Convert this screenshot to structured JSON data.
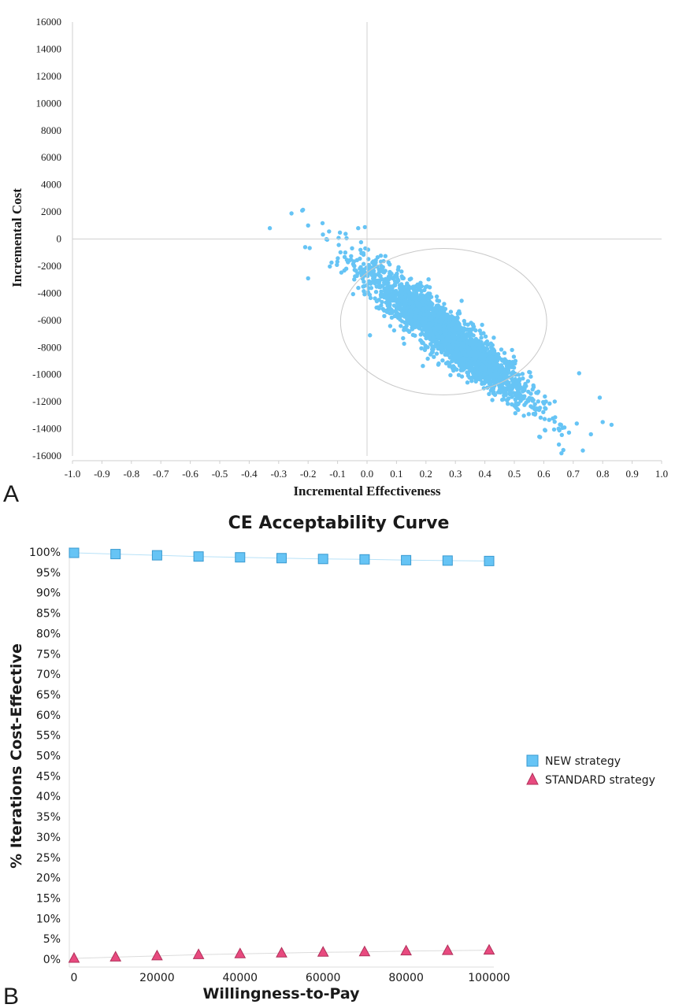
{
  "chart_data": [
    {
      "type": "scatter",
      "panel_label": "A",
      "xlabel": "Incremental Effectiveness",
      "ylabel": "Incremental Cost",
      "xlim": [
        -1.0,
        1.0
      ],
      "ylim": [
        -16000,
        16000
      ],
      "x_ticks": [
        "-1.0",
        "-0.9",
        "-0.8",
        "-0.7",
        "-0.6",
        "-0.5",
        "-0.4",
        "-0.3",
        "-0.2",
        "-0.1",
        "0.0",
        "0.1",
        "0.2",
        "0.3",
        "0.4",
        "0.5",
        "0.6",
        "0.7",
        "0.8",
        "0.9",
        "1.0"
      ],
      "y_ticks": [
        "16000",
        "14000",
        "12000",
        "10000",
        "8000",
        "6000",
        "4000",
        "2000",
        "0",
        "-2000",
        "-4000",
        "-6000",
        "-8000",
        "-10000",
        "-12000",
        "-14000",
        "-16000"
      ],
      "grid": false,
      "point_color": "#66c4f5",
      "cloud": {
        "center": [
          0.27,
          -7000
        ],
        "sd_x": 0.14,
        "sd_y": 2500,
        "correlation": -0.93,
        "n_points": 2500
      },
      "confidence_ellipse": {
        "center": [
          0.26,
          -6100
        ],
        "semi_axis_x": 0.35,
        "semi_axis_y": 5400,
        "color": "#c8c8c8"
      },
      "outliers": [
        {
          "x": -0.33,
          "y": 800
        },
        {
          "x": -0.22,
          "y": 2100
        },
        {
          "x": -0.2,
          "y": 1000
        },
        {
          "x": -0.21,
          "y": -600
        },
        {
          "x": -0.2,
          "y": -2900
        },
        {
          "x": -0.03,
          "y": 800
        },
        {
          "x": 0.01,
          "y": -7100
        },
        {
          "x": 0.66,
          "y": -15800
        },
        {
          "x": 0.76,
          "y": -14400
        },
        {
          "x": 0.8,
          "y": -13500
        },
        {
          "x": 0.83,
          "y": -13700
        },
        {
          "x": 0.79,
          "y": -11700
        },
        {
          "x": 0.72,
          "y": -9900
        }
      ]
    },
    {
      "type": "line",
      "panel_label": "B",
      "title": "CE Acceptability Curve",
      "xlabel": "Willingness-to-Pay",
      "ylabel": "% Iterations Cost-Effective",
      "xlim": [
        0,
        100000
      ],
      "ylim": [
        0,
        100
      ],
      "x_ticks": [
        "0",
        "20000",
        "40000",
        "60000",
        "80000",
        "100000"
      ],
      "y_ticks": [
        "100%",
        "95%",
        "90%",
        "85%",
        "80%",
        "75%",
        "70%",
        "65%",
        "60%",
        "55%",
        "50%",
        "45%",
        "40%",
        "35%",
        "30%",
        "25%",
        "20%",
        "15%",
        "10%",
        "5%",
        "0%"
      ],
      "x": [
        0,
        10000,
        20000,
        30000,
        40000,
        50000,
        60000,
        70000,
        80000,
        90000,
        100000
      ],
      "series": [
        {
          "name": "NEW strategy",
          "marker": "square",
          "color": "#66c4f5",
          "values": [
            99.8,
            99.5,
            99.2,
            98.9,
            98.7,
            98.5,
            98.3,
            98.2,
            98.0,
            97.9,
            97.8
          ]
        },
        {
          "name": "STANDARD strategy",
          "marker": "triangle",
          "color": "#e84a7f",
          "values": [
            0.2,
            0.5,
            0.8,
            1.1,
            1.3,
            1.5,
            1.7,
            1.8,
            2.0,
            2.1,
            2.2
          ]
        }
      ],
      "legend_position": "right"
    }
  ]
}
